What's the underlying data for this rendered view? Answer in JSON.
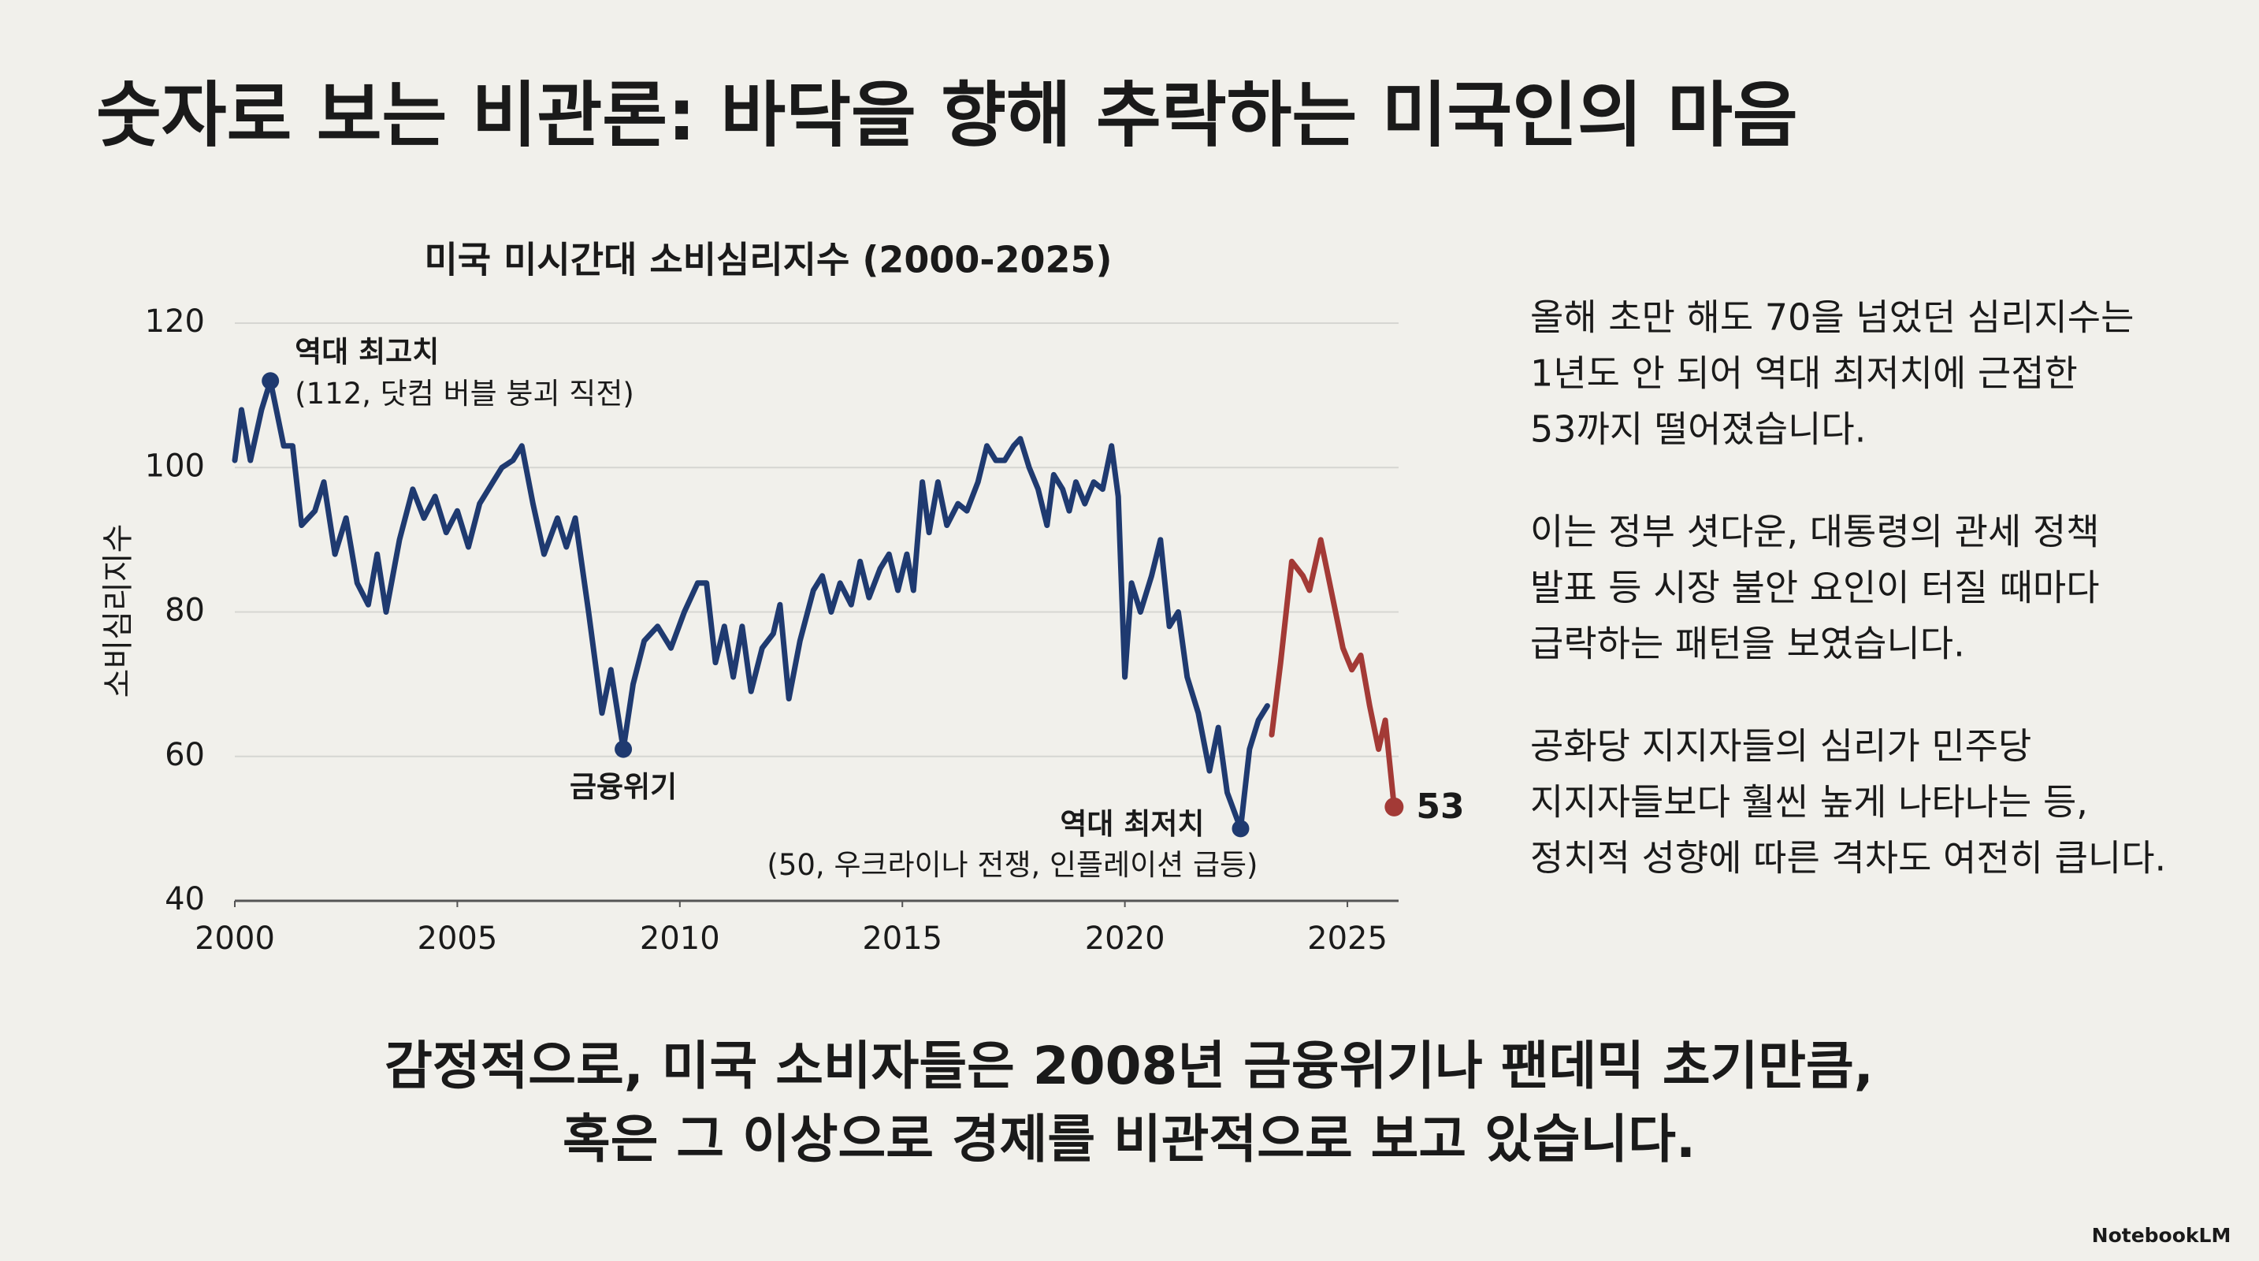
{
  "title": "숫자로 보는 비관론: 바닥을 향해 추락하는 미국인의 마음",
  "chart_data": {
    "type": "line",
    "title": "미국 미시간대 소비심리지수 (2000-2025)",
    "y_label": "소비심리지수",
    "xlim": [
      2000,
      2026.15
    ],
    "xticks": [
      2000,
      2005,
      2010,
      2015,
      2020,
      2025
    ],
    "ylim": [
      40,
      120
    ],
    "yticks": [
      40,
      60,
      80,
      100,
      120
    ],
    "grid": true,
    "series": [
      {
        "color": "#1f3a70",
        "x": [
          2000.0,
          2000.15,
          2000.35,
          2000.6,
          2000.8,
          2001.1,
          2001.3,
          2001.5,
          2001.8,
          2002.0,
          2002.25,
          2002.5,
          2002.75,
          2003.0,
          2003.2,
          2003.4,
          2003.7,
          2004.0,
          2004.25,
          2004.5,
          2004.75,
          2005.0,
          2005.25,
          2005.5,
          2005.8,
          2006.0,
          2006.25,
          2006.45,
          2006.7,
          2006.95,
          2007.25,
          2007.45,
          2007.65,
          2007.95,
          2008.25,
          2008.45,
          2008.73,
          2008.95,
          2009.2,
          2009.5,
          2009.8,
          2010.1,
          2010.4,
          2010.6,
          2010.8,
          2011.0,
          2011.2,
          2011.4,
          2011.6,
          2011.85,
          2012.1,
          2012.25,
          2012.45,
          2012.7,
          2013.0,
          2013.2,
          2013.4,
          2013.6,
          2013.85,
          2014.05,
          2014.25,
          2014.5,
          2014.7,
          2014.9,
          2015.1,
          2015.25,
          2015.45,
          2015.6,
          2015.8,
          2016.0,
          2016.25,
          2016.45,
          2016.7,
          2016.9,
          2017.1,
          2017.3,
          2017.5,
          2017.65,
          2017.85,
          2018.05,
          2018.25,
          2018.4,
          2018.6,
          2018.75,
          2018.9,
          2019.1,
          2019.3,
          2019.5,
          2019.7,
          2019.85,
          2020.0,
          2020.15,
          2020.35,
          2020.6,
          2020.8,
          2021.0,
          2021.2,
          2021.4,
          2021.65,
          2021.9,
          2022.1,
          2022.3,
          2022.6,
          2022.8,
          2023.0,
          2023.2
        ],
        "values": [
          101,
          108,
          101,
          108,
          112,
          103,
          103,
          92,
          94,
          98,
          88,
          93,
          84,
          81,
          88,
          80,
          90,
          97,
          93,
          96,
          91,
          94,
          89,
          95,
          98,
          100,
          101,
          103,
          95,
          88,
          93,
          89,
          93,
          80,
          66,
          72,
          61,
          70,
          76,
          78,
          75,
          80,
          84,
          84,
          73,
          78,
          71,
          78,
          69,
          75,
          77,
          81,
          68,
          76,
          83,
          85,
          80,
          84,
          81,
          87,
          82,
          86,
          88,
          83,
          88,
          83,
          98,
          91,
          98,
          92,
          95,
          94,
          98,
          103,
          101,
          101,
          103,
          104,
          100,
          97,
          92,
          99,
          97,
          94,
          98,
          95,
          98,
          97,
          103,
          96,
          71,
          84,
          80,
          85,
          90,
          78,
          80,
          71,
          66,
          58,
          64,
          55,
          50,
          61,
          65,
          67
        ]
      },
      {
        "color": "#a33a36",
        "label_last": true,
        "x": [
          2023.3,
          2023.5,
          2023.75,
          2024.0,
          2024.15,
          2024.4,
          2024.6,
          2024.9,
          2025.1,
          2025.3,
          2025.5,
          2025.7,
          2025.85,
          2026.05
        ],
        "values": [
          63,
          73,
          87,
          85,
          83,
          90,
          84,
          75,
          72,
          74,
          67,
          61,
          65,
          53
        ]
      }
    ],
    "annotations": [
      {
        "text": "역대 최고치",
        "detail": "(112, 닷컴 버블 붕괴 직전)",
        "x": 2000.8,
        "y": 112
      },
      {
        "text": "금융위기",
        "x": 2008.73,
        "y": 61
      },
      {
        "text": "역대 최저치",
        "detail": "(50, 우크라이나 전쟁, 인플레이션 급등)",
        "x": 2022.6,
        "y": 50
      }
    ]
  },
  "commentary": [
    [
      "올해 초만 해도 70을 넘었던 심리지수는",
      "1년도 안 되어 역대 최저치에 근접한",
      "53까지 떨어졌습니다."
    ],
    [
      "이는 정부 셧다운, 대통령의 관세 정책",
      "발표 등 시장 불안 요인이 터질 때마다",
      "급락하는 패턴을 보였습니다."
    ],
    [
      "공화당 지지자들의 심리가 민주당",
      "지지자들보다 훨씬 높게 나타나는 등,",
      "정치적 성향에 따른 격차도 여전히 큽니다."
    ]
  ],
  "conclusion": [
    "감정적으로, 미국 소비자들은 2008년 금융위기나 팬데믹 초기만큼,",
    "혹은 그 이상으로 경제를 비관적으로 보고 있습니다."
  ],
  "brand": "NotebookLM"
}
